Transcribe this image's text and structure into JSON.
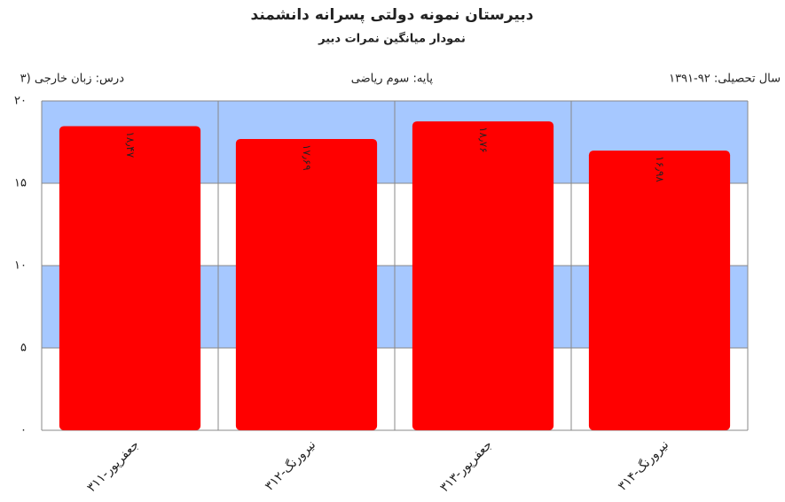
{
  "chart_data": {
    "type": "bar",
    "title": "دبیرستان  نمونه دولتی پسرانه دانشمند",
    "subtitle": "نمودار میانگین نمرات دبیر",
    "info": {
      "lesson": "درس: زبان خارجی (۳",
      "grade": "پایه: سوم ریاضی",
      "year": "سال تحصیلی: ۹۲-۱۳۹۱"
    },
    "categories": [
      "جعفرپور-۳۱۱",
      "نیرورنگ-۳۱۲",
      "جعفرپور-۳۱۳",
      "نیرورنگ-۳۱۴"
    ],
    "values": [
      18.47,
      17.69,
      18.76,
      16.98
    ],
    "value_labels": [
      "۱۸٫۴۷",
      "۱۷٫۶۹",
      "۱۸٫۷۶",
      "۱۶٫۹۸"
    ],
    "color": "#ff0000",
    "band_color": "#a6c8ff",
    "ylim": [
      0,
      20
    ],
    "yticks": [
      {
        "value": 0,
        "label": "۰"
      },
      {
        "value": 5,
        "label": "۵"
      },
      {
        "value": 10,
        "label": "۱۰"
      },
      {
        "value": 15,
        "label": "۱۵"
      },
      {
        "value": 20,
        "label": "۲۰"
      }
    ],
    "grid": true
  }
}
